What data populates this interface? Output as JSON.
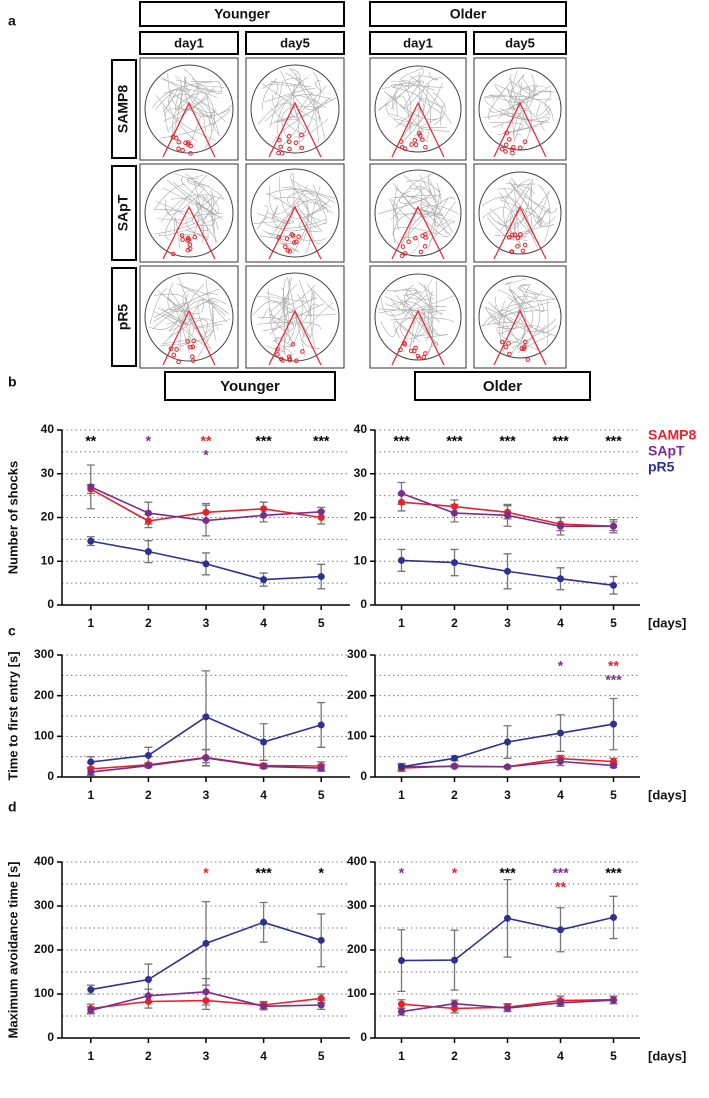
{
  "panel_a": {
    "label": "a",
    "groups": [
      {
        "title": "Younger",
        "days": [
          "day1",
          "day5"
        ]
      },
      {
        "title": "Older",
        "days": [
          "day1",
          "day5"
        ]
      }
    ],
    "rows": [
      "SAMP8",
      "SApT",
      "pR5"
    ]
  },
  "panel_labels": [
    "b",
    "c",
    "d"
  ],
  "headers": [
    "Younger",
    "Older"
  ],
  "chart_data": [
    {
      "type": "line",
      "ylabel": "Number of shocks",
      "x": [
        1,
        2,
        3,
        4,
        5
      ],
      "xlim": [
        0.5,
        5.5
      ],
      "xticks": [
        1,
        2,
        3,
        4,
        5
      ],
      "ylim": [
        0,
        40
      ],
      "yticks": [
        0,
        10,
        20,
        30,
        40
      ],
      "ygrid": [
        5,
        10,
        15,
        20,
        25,
        30,
        35,
        40
      ],
      "series": [
        {
          "name": "SAMP8",
          "color": "#e8222b",
          "values": [
            26.5,
            19.2,
            21.2,
            22,
            20
          ],
          "errors": [
            1,
            1.5,
            2,
            1.5,
            1.5
          ]
        },
        {
          "name": "SApT",
          "color": "#7b2d8e",
          "values": [
            27,
            21,
            19.3,
            20.5,
            21.3
          ],
          "errors": [
            5,
            2.5,
            3.5,
            1.5,
            1
          ]
        },
        {
          "name": "pR5",
          "color": "#2e3192",
          "values": [
            14.6,
            12.2,
            9.4,
            5.8,
            6.5
          ],
          "errors": [
            1,
            2.5,
            2.5,
            1.5,
            2.8
          ]
        }
      ],
      "annotations": [
        {
          "x": 1,
          "text": "**",
          "color": "#000000"
        },
        {
          "x": 2,
          "text": "*",
          "color": "#7b2d8e"
        },
        {
          "x": 3,
          "text": "**",
          "color": "#e8222b"
        },
        {
          "x": 3,
          "text": "*",
          "color": "#7b2d8e"
        },
        {
          "x": 4,
          "text": "***",
          "color": "#000000"
        },
        {
          "x": 5,
          "text": "***",
          "color": "#000000"
        }
      ]
    },
    {
      "type": "line",
      "xlabel": "[days]",
      "legend": "right",
      "x": [
        1,
        2,
        3,
        4,
        5
      ],
      "xlim": [
        0.5,
        5.5
      ],
      "xticks": [
        1,
        2,
        3,
        4,
        5
      ],
      "ylim": [
        0,
        40
      ],
      "yticks": [
        0,
        10,
        20,
        30,
        40
      ],
      "ygrid": [
        5,
        10,
        15,
        20,
        25,
        30,
        35,
        40
      ],
      "series": [
        {
          "name": "SAMP8",
          "color": "#e8222b",
          "values": [
            23.5,
            22.5,
            21.2,
            18.5,
            18
          ],
          "errors": [
            2,
            1.5,
            1.5,
            1.5,
            1
          ]
        },
        {
          "name": "SApT",
          "color": "#7b2d8e",
          "values": [
            25.5,
            21,
            20.5,
            18,
            18
          ],
          "errors": [
            2.5,
            2,
            2.5,
            2,
            1.5
          ]
        },
        {
          "name": "pR5",
          "color": "#2e3192",
          "values": [
            10.2,
            9.7,
            7.7,
            6,
            4.5
          ],
          "errors": [
            2.5,
            3,
            4,
            2.5,
            2
          ]
        }
      ],
      "annotations": [
        {
          "x": 1,
          "text": "***",
          "color": "#000000"
        },
        {
          "x": 2,
          "text": "***",
          "color": "#000000"
        },
        {
          "x": 3,
          "text": "***",
          "color": "#000000"
        },
        {
          "x": 4,
          "text": "***",
          "color": "#000000"
        },
        {
          "x": 5,
          "text": "***",
          "color": "#000000"
        }
      ]
    },
    {
      "type": "line",
      "ylabel": "Time to first entry [s]",
      "x": [
        1,
        2,
        3,
        4,
        5
      ],
      "xlim": [
        0.5,
        5.5
      ],
      "xticks": [
        1,
        2,
        3,
        4,
        5
      ],
      "ylim": [
        0,
        300
      ],
      "yticks": [
        0,
        100,
        200,
        300
      ],
      "ygrid": [
        50,
        100,
        150,
        200,
        250,
        300
      ],
      "series": [
        {
          "name": "SAMP8",
          "color": "#e8222b",
          "values": [
            20,
            30,
            48,
            28,
            27
          ],
          "errors": [
            15,
            5,
            20,
            5,
            10
          ]
        },
        {
          "name": "SApT",
          "color": "#7b2d8e",
          "values": [
            12,
            28,
            47,
            26,
            22
          ],
          "errors": [
            8,
            5,
            20,
            5,
            8
          ]
        },
        {
          "name": "pR5",
          "color": "#2e3192",
          "values": [
            37,
            53,
            148,
            86,
            128
          ],
          "errors": [
            13,
            20,
            113,
            45,
            55
          ]
        }
      ],
      "annotations": []
    },
    {
      "type": "line",
      "xlabel": "[days]",
      "x": [
        1,
        2,
        3,
        4,
        5
      ],
      "xlim": [
        0.5,
        5.5
      ],
      "xticks": [
        1,
        2,
        3,
        4,
        5
      ],
      "ylim": [
        0,
        300
      ],
      "yticks": [
        0,
        100,
        200,
        300
      ],
      "ygrid": [
        50,
        100,
        150,
        200,
        250,
        300
      ],
      "series": [
        {
          "name": "SAMP8",
          "color": "#e8222b",
          "values": [
            22,
            27,
            25,
            45,
            38
          ],
          "errors": [
            8,
            3,
            3,
            8,
            8
          ]
        },
        {
          "name": "SApT",
          "color": "#7b2d8e",
          "values": [
            25,
            26,
            25,
            38,
            28
          ],
          "errors": [
            8,
            3,
            3,
            10,
            5
          ]
        },
        {
          "name": "pR5",
          "color": "#2e3192",
          "values": [
            25,
            46,
            86,
            108,
            130
          ],
          "errors": [
            8,
            6,
            40,
            45,
            63
          ]
        }
      ],
      "annotations": [
        {
          "x": 4,
          "text": "*",
          "color": "#7b2d8e"
        },
        {
          "x": 5,
          "text": "**",
          "color": "#e8222b"
        },
        {
          "x": 5,
          "text": "***",
          "color": "#7b2d8e"
        }
      ]
    },
    {
      "type": "line",
      "ylabel": "Maximum avoidance time [s]",
      "x": [
        1,
        2,
        3,
        4,
        5
      ],
      "xlim": [
        0.5,
        5.5
      ],
      "xticks": [
        1,
        2,
        3,
        4,
        5
      ],
      "ylim": [
        0,
        400
      ],
      "yticks": [
        0,
        100,
        200,
        300,
        400
      ],
      "ygrid": [
        50,
        100,
        150,
        200,
        250,
        300,
        350,
        400
      ],
      "series": [
        {
          "name": "SAMP8",
          "color": "#e8222b",
          "values": [
            67,
            83,
            85,
            75,
            90
          ],
          "errors": [
            10,
            15,
            20,
            8,
            10
          ]
        },
        {
          "name": "SApT",
          "color": "#7b2d8e",
          "values": [
            63,
            96,
            105,
            72,
            75
          ],
          "errors": [
            8,
            15,
            30,
            8,
            10
          ]
        },
        {
          "name": "pR5",
          "color": "#2e3192",
          "values": [
            110,
            133,
            215,
            263,
            222
          ],
          "errors": [
            10,
            35,
            95,
            45,
            60
          ]
        }
      ],
      "annotations": [
        {
          "x": 3,
          "text": "*",
          "color": "#e8222b"
        },
        {
          "x": 4,
          "text": "***",
          "color": "#000000"
        },
        {
          "x": 5,
          "text": "*",
          "color": "#000000"
        }
      ]
    },
    {
      "type": "line",
      "xlabel": "[days]",
      "x": [
        1,
        2,
        3,
        4,
        5
      ],
      "xlim": [
        0.5,
        5.5
      ],
      "xticks": [
        1,
        2,
        3,
        4,
        5
      ],
      "ylim": [
        0,
        400
      ],
      "yticks": [
        0,
        100,
        200,
        300,
        400
      ],
      "ygrid": [
        50,
        100,
        150,
        200,
        250,
        300,
        350,
        400
      ],
      "series": [
        {
          "name": "SAMP8",
          "color": "#e8222b",
          "values": [
            77,
            67,
            70,
            85,
            87
          ],
          "errors": [
            10,
            10,
            8,
            10,
            8
          ]
        },
        {
          "name": "SApT",
          "color": "#7b2d8e",
          "values": [
            60,
            78,
            68,
            80,
            86
          ],
          "errors": [
            8,
            8,
            8,
            8,
            8
          ]
        },
        {
          "name": "pR5",
          "color": "#2e3192",
          "values": [
            176,
            177,
            272,
            246,
            274
          ],
          "errors": [
            70,
            68,
            88,
            50,
            48
          ]
        }
      ],
      "annotations": [
        {
          "x": 1,
          "text": "*",
          "color": "#7b2d8e"
        },
        {
          "x": 2,
          "text": "*",
          "color": "#e8222b"
        },
        {
          "x": 3,
          "text": "***",
          "color": "#000000"
        },
        {
          "x": 4,
          "text": "***",
          "color": "#7b2d8e"
        },
        {
          "x": 4,
          "text": "**",
          "color": "#e8222b"
        },
        {
          "x": 5,
          "text": "***",
          "color": "#000000"
        }
      ]
    }
  ]
}
